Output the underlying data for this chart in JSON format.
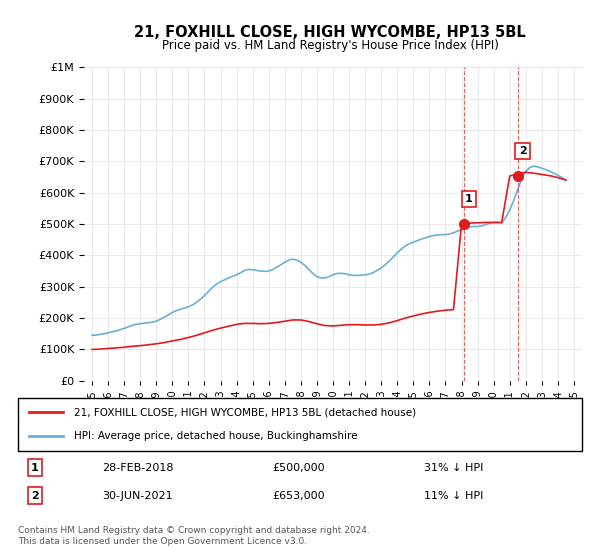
{
  "title": "21, FOXHILL CLOSE, HIGH WYCOMBE, HP13 5BL",
  "subtitle": "Price paid vs. HM Land Registry's House Price Index (HPI)",
  "title_fontsize": 11,
  "subtitle_fontsize": 9,
  "hpi_color": "#6baed6",
  "property_color": "#e31a1c",
  "marker_color": "#e31a1c",
  "sale1_date": "28-FEB-2018",
  "sale1_price": 500000,
  "sale1_pct": "31%",
  "sale1_year": 2018.16,
  "sale2_date": "30-JUN-2021",
  "sale2_price": 653000,
  "sale2_pct": "11%",
  "sale2_year": 2021.5,
  "ylim": [
    0,
    1000000
  ],
  "xlim": [
    1994.5,
    2025.5
  ],
  "legend_label_property": "21, FOXHILL CLOSE, HIGH WYCOMBE, HP13 5BL (detached house)",
  "legend_label_hpi": "HPI: Average price, detached house, Buckinghamshire",
  "footer": "Contains HM Land Registry data © Crown copyright and database right 2024.\nThis data is licensed under the Open Government Licence v3.0.",
  "hpi_years": [
    1995,
    1995.25,
    1995.5,
    1995.75,
    1996,
    1996.25,
    1996.5,
    1996.75,
    1997,
    1997.25,
    1997.5,
    1997.75,
    1998,
    1998.25,
    1998.5,
    1998.75,
    1999,
    1999.25,
    1999.5,
    1999.75,
    2000,
    2000.25,
    2000.5,
    2000.75,
    2001,
    2001.25,
    2001.5,
    2001.75,
    2002,
    2002.25,
    2002.5,
    2002.75,
    2003,
    2003.25,
    2003.5,
    2003.75,
    2004,
    2004.25,
    2004.5,
    2004.75,
    2005,
    2005.25,
    2005.5,
    2005.75,
    2006,
    2006.25,
    2006.5,
    2006.75,
    2007,
    2007.25,
    2007.5,
    2007.75,
    2008,
    2008.25,
    2008.5,
    2008.75,
    2009,
    2009.25,
    2009.5,
    2009.75,
    2010,
    2010.25,
    2010.5,
    2010.75,
    2011,
    2011.25,
    2011.5,
    2011.75,
    2012,
    2012.25,
    2012.5,
    2012.75,
    2013,
    2013.25,
    2013.5,
    2013.75,
    2014,
    2014.25,
    2014.5,
    2014.75,
    2015,
    2015.25,
    2015.5,
    2015.75,
    2016,
    2016.25,
    2016.5,
    2016.75,
    2017,
    2017.25,
    2017.5,
    2017.75,
    2018,
    2018.25,
    2018.5,
    2018.75,
    2019,
    2019.25,
    2019.5,
    2019.75,
    2020,
    2020.25,
    2020.5,
    2020.75,
    2021,
    2021.25,
    2021.5,
    2021.75,
    2022,
    2022.25,
    2022.5,
    2022.75,
    2023,
    2023.25,
    2023.5,
    2023.75,
    2024,
    2024.25,
    2024.5
  ],
  "hpi_values": [
    145000,
    146000,
    148000,
    150000,
    153000,
    156000,
    159000,
    163000,
    167000,
    172000,
    177000,
    180000,
    182000,
    184000,
    185000,
    187000,
    190000,
    196000,
    203000,
    210000,
    218000,
    224000,
    228000,
    232000,
    236000,
    242000,
    250000,
    260000,
    272000,
    285000,
    298000,
    308000,
    316000,
    322000,
    328000,
    333000,
    338000,
    345000,
    352000,
    355000,
    354000,
    352000,
    350000,
    349000,
    350000,
    355000,
    362000,
    370000,
    378000,
    385000,
    388000,
    385000,
    378000,
    368000,
    355000,
    342000,
    332000,
    328000,
    328000,
    332000,
    338000,
    342000,
    343000,
    341000,
    338000,
    336000,
    336000,
    337000,
    338000,
    340000,
    345000,
    352000,
    360000,
    370000,
    382000,
    395000,
    408000,
    420000,
    430000,
    437000,
    442000,
    447000,
    452000,
    456000,
    460000,
    463000,
    465000,
    466000,
    466000,
    468000,
    472000,
    477000,
    483000,
    488000,
    491000,
    492000,
    492000,
    494000,
    498000,
    502000,
    505000,
    505000,
    503000,
    520000,
    545000,
    575000,
    610000,
    645000,
    668000,
    680000,
    685000,
    682000,
    678000,
    673000,
    668000,
    662000,
    655000,
    648000,
    640000
  ],
  "property_years": [
    1995,
    1995.5,
    1996,
    1996.5,
    1997,
    1997.5,
    1998,
    1998.5,
    1999,
    1999.5,
    2000,
    2000.5,
    2001,
    2001.5,
    2002,
    2002.5,
    2003,
    2003.5,
    2004,
    2004.5,
    2005,
    2005.5,
    2006,
    2006.5,
    2007,
    2007.5,
    2008,
    2008.5,
    2009,
    2009.5,
    2010,
    2010.5,
    2011,
    2011.5,
    2012,
    2012.5,
    2013,
    2013.5,
    2014,
    2014.5,
    2015,
    2015.5,
    2016,
    2016.5,
    2017,
    2017.5,
    2018,
    2018.5,
    2019,
    2019.5,
    2020,
    2020.5,
    2021,
    2021.5,
    2022,
    2022.5,
    2023,
    2023.5,
    2024,
    2024.5
  ],
  "property_values": [
    100000,
    101000,
    103000,
    105000,
    107000,
    110000,
    112000,
    115000,
    118000,
    122000,
    127000,
    132000,
    138000,
    145000,
    153000,
    161000,
    168000,
    174000,
    180000,
    183000,
    183000,
    182000,
    183000,
    186000,
    190000,
    194000,
    194000,
    189000,
    182000,
    176000,
    175000,
    177000,
    179000,
    179000,
    178000,
    178000,
    180000,
    185000,
    192000,
    200000,
    207000,
    213000,
    218000,
    222000,
    225000,
    227000,
    500000,
    503000,
    504000,
    505000,
    505000,
    505000,
    653000,
    660000,
    665000,
    662000,
    658000,
    654000,
    648000,
    640000
  ]
}
